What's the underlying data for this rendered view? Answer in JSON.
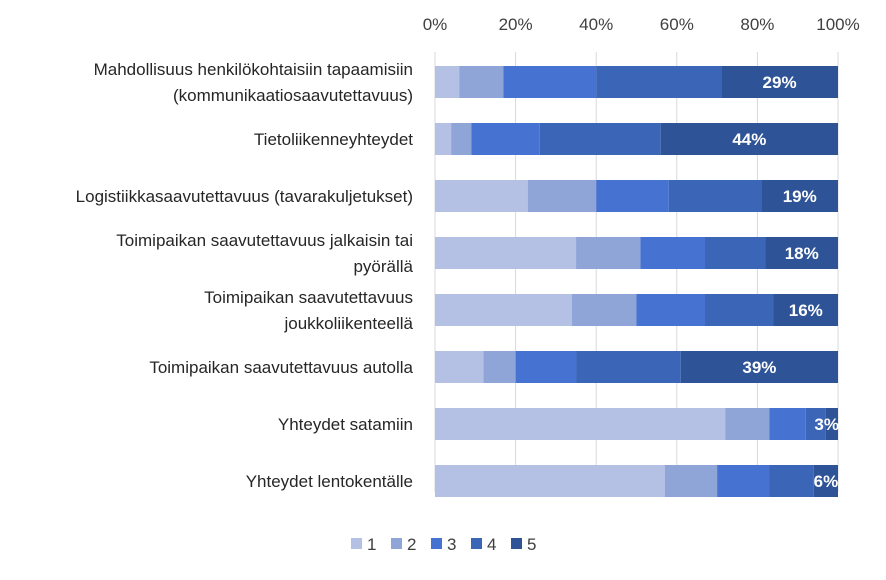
{
  "chart_data": {
    "type": "bar",
    "orientation": "horizontal",
    "stacked": "percent",
    "xlim": [
      0,
      100
    ],
    "x_ticks": [
      "0%",
      "20%",
      "40%",
      "60%",
      "80%",
      "100%"
    ],
    "x_axis_position": "top",
    "grid": true,
    "legend_position": "bottom",
    "categories": [
      [
        "Mahdollisuus henkilökohtaisiin tapaamisiin",
        "(kommunikaatiosaavutettavuus)"
      ],
      [
        "Tietoliikenneyhteydet"
      ],
      [
        "Logistiikkasaavutettavuus (tavarakuljetukset)"
      ],
      [
        "Toimipaikan saavutettavuus jalkaisin tai",
        "pyörällä"
      ],
      [
        "Toimipaikan saavutettavuus",
        "joukkoliikenteellä"
      ],
      [
        "Toimipaikan saavutettavuus autolla"
      ],
      [
        "Yhteydet satamiin"
      ],
      [
        "Yhteydet lentokentälle"
      ]
    ],
    "series": [
      {
        "name": "1",
        "color": "#b4c0e4",
        "values": [
          6,
          4,
          23,
          35,
          34,
          12,
          72,
          57
        ]
      },
      {
        "name": "2",
        "color": "#8fa5d8",
        "values": [
          11,
          5,
          17,
          16,
          16,
          8,
          11,
          13
        ]
      },
      {
        "name": "3",
        "color": "#4673d1",
        "values": [
          23,
          17,
          18,
          16,
          17,
          15,
          9,
          13
        ]
      },
      {
        "name": "4",
        "color": "#3b66b8",
        "values": [
          31,
          30,
          23,
          15,
          17,
          26,
          5,
          11
        ]
      },
      {
        "name": "5",
        "color": "#2e5497",
        "values": [
          29,
          44,
          19,
          18,
          16,
          39,
          3,
          6
        ]
      }
    ],
    "data_labels": [
      "29%",
      "44%",
      "19%",
      "18%",
      "16%",
      "39%",
      "3%",
      "6%"
    ]
  }
}
